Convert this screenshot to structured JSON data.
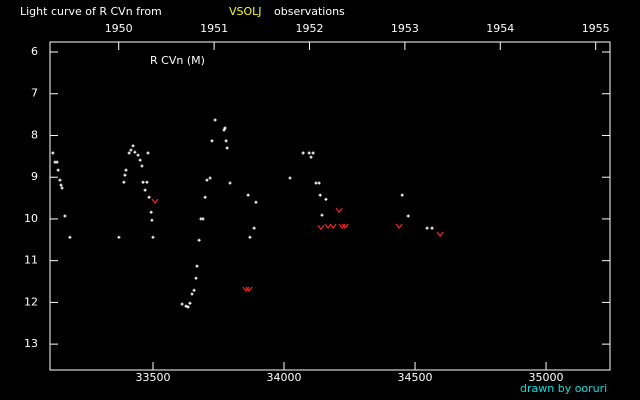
{
  "chart_data": {
    "type": "scatter",
    "title": "Light curve of R CVn from",
    "source": "VSOLJ",
    "title_suffix": "observations",
    "label": "R CVn (M)",
    "credit": "drawn by ooruri",
    "xlim": [
      33107,
      35244
    ],
    "xticks": [
      33500,
      34000,
      34500,
      35000
    ],
    "x2lim": [
      1949.28,
      1955.15
    ],
    "x2ticks": [
      1950,
      1951,
      1952,
      1953,
      1954,
      1955
    ],
    "ylim": [
      5.76,
      13.62
    ],
    "y_inverted": true,
    "yticks": [
      6,
      7,
      8,
      9,
      10,
      11,
      12,
      13
    ],
    "series": [
      {
        "color": "#ffffff",
        "marker": "dot",
        "x": [
          33118,
          33126,
          33134,
          33138,
          33145,
          33149,
          33153,
          33164,
          33183,
          33370,
          33389,
          33393,
          33397,
          33409,
          33416,
          33424,
          33431,
          33443,
          33451,
          33458,
          33462,
          33470,
          33477,
          33481,
          33485,
          33493,
          33496,
          33500,
          33611,
          33626,
          33634,
          33641,
          33649,
          33657,
          33664,
          33668,
          33676,
          33683,
          33691,
          33699,
          33706,
          33718,
          33725,
          33737,
          33771,
          33775,
          33779,
          33783,
          33794,
          33863,
          33870,
          33886,
          33893,
          34023,
          34073,
          34096,
          34103,
          34111,
          34122,
          34134,
          34138,
          34145,
          34160,
          34451,
          34474,
          34546,
          34565
        ],
        "y": [
          8.42,
          8.64,
          8.64,
          8.83,
          9.07,
          9.19,
          9.26,
          9.93,
          10.44,
          10.44,
          9.12,
          8.95,
          8.83,
          8.42,
          8.35,
          8.25,
          8.4,
          8.47,
          8.59,
          8.73,
          9.12,
          9.31,
          9.12,
          8.42,
          9.48,
          9.84,
          10.03,
          10.44,
          12.04,
          12.09,
          12.11,
          12.02,
          11.8,
          11.71,
          11.42,
          11.13,
          10.51,
          10.0,
          10.0,
          9.48,
          9.07,
          9.02,
          8.13,
          7.63,
          7.87,
          7.82,
          8.13,
          8.3,
          9.14,
          9.43,
          10.44,
          10.22,
          9.6,
          9.02,
          8.42,
          8.42,
          8.52,
          8.42,
          9.14,
          9.14,
          9.43,
          9.91,
          9.53,
          9.43,
          9.93,
          10.22,
          10.22
        ]
      },
      {
        "color": "#ff2020",
        "marker": "v",
        "x": [
          33508,
          33855,
          33867,
          34141,
          34168,
          34187,
          34210,
          34222,
          34233,
          34439,
          34596
        ],
        "y": [
          9.57,
          11.68,
          11.68,
          10.2,
          10.17,
          10.17,
          9.79,
          10.17,
          10.17,
          10.17,
          10.36
        ]
      }
    ]
  }
}
